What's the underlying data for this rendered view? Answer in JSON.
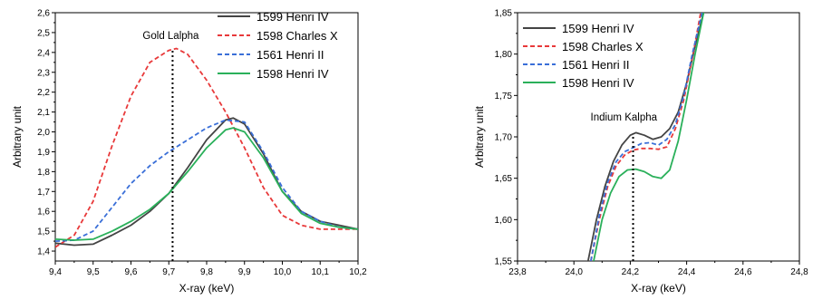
{
  "chart_data": [
    {
      "type": "line",
      "xlabel": "X-ray (keV)",
      "ylabel": "Arbitrary unit",
      "xlim": [
        9.4,
        10.2
      ],
      "ylim": [
        1.35,
        2.6
      ],
      "xticks": [
        "9,4",
        "9,5",
        "9,6",
        "9,7",
        "9,8",
        "9,9",
        "10,0",
        "10,1",
        "10,2"
      ],
      "yticks": [
        "1,4",
        "1,5",
        "1,6",
        "1,7",
        "1,8",
        "1,9",
        "2,0",
        "2,1",
        "2,2",
        "2,3",
        "2,4",
        "2,5",
        "2,6"
      ],
      "annotation": {
        "text": "Gold Lalpha",
        "x": 9.71
      },
      "legend_position": "top-right",
      "series": [
        {
          "name": "1599 Henri IV",
          "color": "#444444",
          "dash": "solid",
          "x": [
            9.4,
            9.45,
            9.5,
            9.55,
            9.6,
            9.65,
            9.7,
            9.75,
            9.8,
            9.85,
            9.87,
            9.9,
            9.95,
            10.0,
            10.05,
            10.1,
            10.15,
            10.2
          ],
          "y": [
            1.44,
            1.43,
            1.435,
            1.48,
            1.53,
            1.6,
            1.69,
            1.82,
            1.96,
            2.06,
            2.07,
            2.04,
            1.89,
            1.7,
            1.6,
            1.55,
            1.53,
            1.51
          ]
        },
        {
          "name": "1598 Charles X",
          "color": "#e8393a",
          "dash": "dashed",
          "x": [
            9.4,
            9.45,
            9.5,
            9.55,
            9.6,
            9.65,
            9.7,
            9.72,
            9.75,
            9.8,
            9.85,
            9.9,
            9.95,
            10.0,
            10.05,
            10.1,
            10.15,
            10.2
          ],
          "y": [
            1.42,
            1.48,
            1.65,
            1.93,
            2.18,
            2.35,
            2.41,
            2.42,
            2.39,
            2.26,
            2.1,
            1.92,
            1.72,
            1.58,
            1.53,
            1.51,
            1.51,
            1.51
          ]
        },
        {
          "name": "1561 Henri II",
          "color": "#3a6fd8",
          "dash": "dashed",
          "x": [
            9.4,
            9.45,
            9.5,
            9.55,
            9.6,
            9.65,
            9.7,
            9.75,
            9.8,
            9.85,
            9.9,
            9.95,
            10.0,
            10.05,
            10.1,
            10.15,
            10.2
          ],
          "y": [
            1.45,
            1.455,
            1.5,
            1.62,
            1.74,
            1.83,
            1.9,
            1.96,
            2.02,
            2.06,
            2.05,
            1.9,
            1.72,
            1.6,
            1.55,
            1.52,
            1.51
          ]
        },
        {
          "name": "1598 Henri IV",
          "color": "#2ab05a",
          "dash": "solid",
          "x": [
            9.4,
            9.45,
            9.5,
            9.55,
            9.6,
            9.65,
            9.7,
            9.75,
            9.8,
            9.85,
            9.87,
            9.9,
            9.95,
            10.0,
            10.05,
            10.1,
            10.15,
            10.2
          ],
          "y": [
            1.46,
            1.455,
            1.46,
            1.5,
            1.55,
            1.61,
            1.69,
            1.8,
            1.92,
            2.01,
            2.02,
            2.0,
            1.87,
            1.7,
            1.59,
            1.54,
            1.52,
            1.51
          ]
        }
      ]
    },
    {
      "type": "line",
      "xlabel": "X-ray (keV)",
      "ylabel": "Arbitrary unit",
      "xlim": [
        23.8,
        24.8
      ],
      "ylim": [
        1.55,
        1.85
      ],
      "xticks": [
        "23,8",
        "24,0",
        "24,2",
        "24,4",
        "24,6",
        "24,8"
      ],
      "yticks": [
        "1,55",
        "1,60",
        "1,65",
        "1,70",
        "1,75",
        "1,80",
        "1,85"
      ],
      "annotation": {
        "text": "Indium Kalpha",
        "x": 24.21
      },
      "legend_position": "top-left",
      "series": [
        {
          "name": "1599 Henri IV",
          "color": "#444444",
          "dash": "solid",
          "x": [
            24.05,
            24.08,
            24.11,
            24.14,
            24.17,
            24.2,
            24.22,
            24.25,
            24.28,
            24.31,
            24.34,
            24.37,
            24.4,
            24.43,
            24.46
          ],
          "y": [
            1.55,
            1.6,
            1.64,
            1.67,
            1.69,
            1.702,
            1.705,
            1.702,
            1.697,
            1.7,
            1.71,
            1.73,
            1.765,
            1.81,
            1.85
          ]
        },
        {
          "name": "1598 Charles X",
          "color": "#e8393a",
          "dash": "dashed",
          "x": [
            24.06,
            24.09,
            24.12,
            24.15,
            24.18,
            24.21,
            24.24,
            24.27,
            24.3,
            24.33,
            24.36,
            24.39,
            24.42,
            24.45
          ],
          "y": [
            1.55,
            1.6,
            1.64,
            1.665,
            1.678,
            1.684,
            1.686,
            1.686,
            1.685,
            1.688,
            1.71,
            1.745,
            1.795,
            1.85
          ]
        },
        {
          "name": "1561 Henri II",
          "color": "#3a6fd8",
          "dash": "dashed",
          "x": [
            24.06,
            24.09,
            24.12,
            24.15,
            24.18,
            24.21,
            24.24,
            24.27,
            24.3,
            24.33,
            24.36,
            24.39,
            24.42,
            24.455
          ],
          "y": [
            1.55,
            1.605,
            1.645,
            1.67,
            1.682,
            1.687,
            1.692,
            1.693,
            1.69,
            1.697,
            1.715,
            1.75,
            1.8,
            1.85
          ]
        },
        {
          "name": "1598 Henri IV",
          "color": "#2ab05a",
          "dash": "solid",
          "x": [
            24.07,
            24.1,
            24.13,
            24.16,
            24.19,
            24.22,
            24.25,
            24.28,
            24.31,
            24.34,
            24.37,
            24.4,
            24.43,
            24.46
          ],
          "y": [
            1.55,
            1.6,
            1.632,
            1.652,
            1.66,
            1.661,
            1.658,
            1.652,
            1.65,
            1.66,
            1.695,
            1.745,
            1.8,
            1.85
          ]
        }
      ]
    }
  ]
}
